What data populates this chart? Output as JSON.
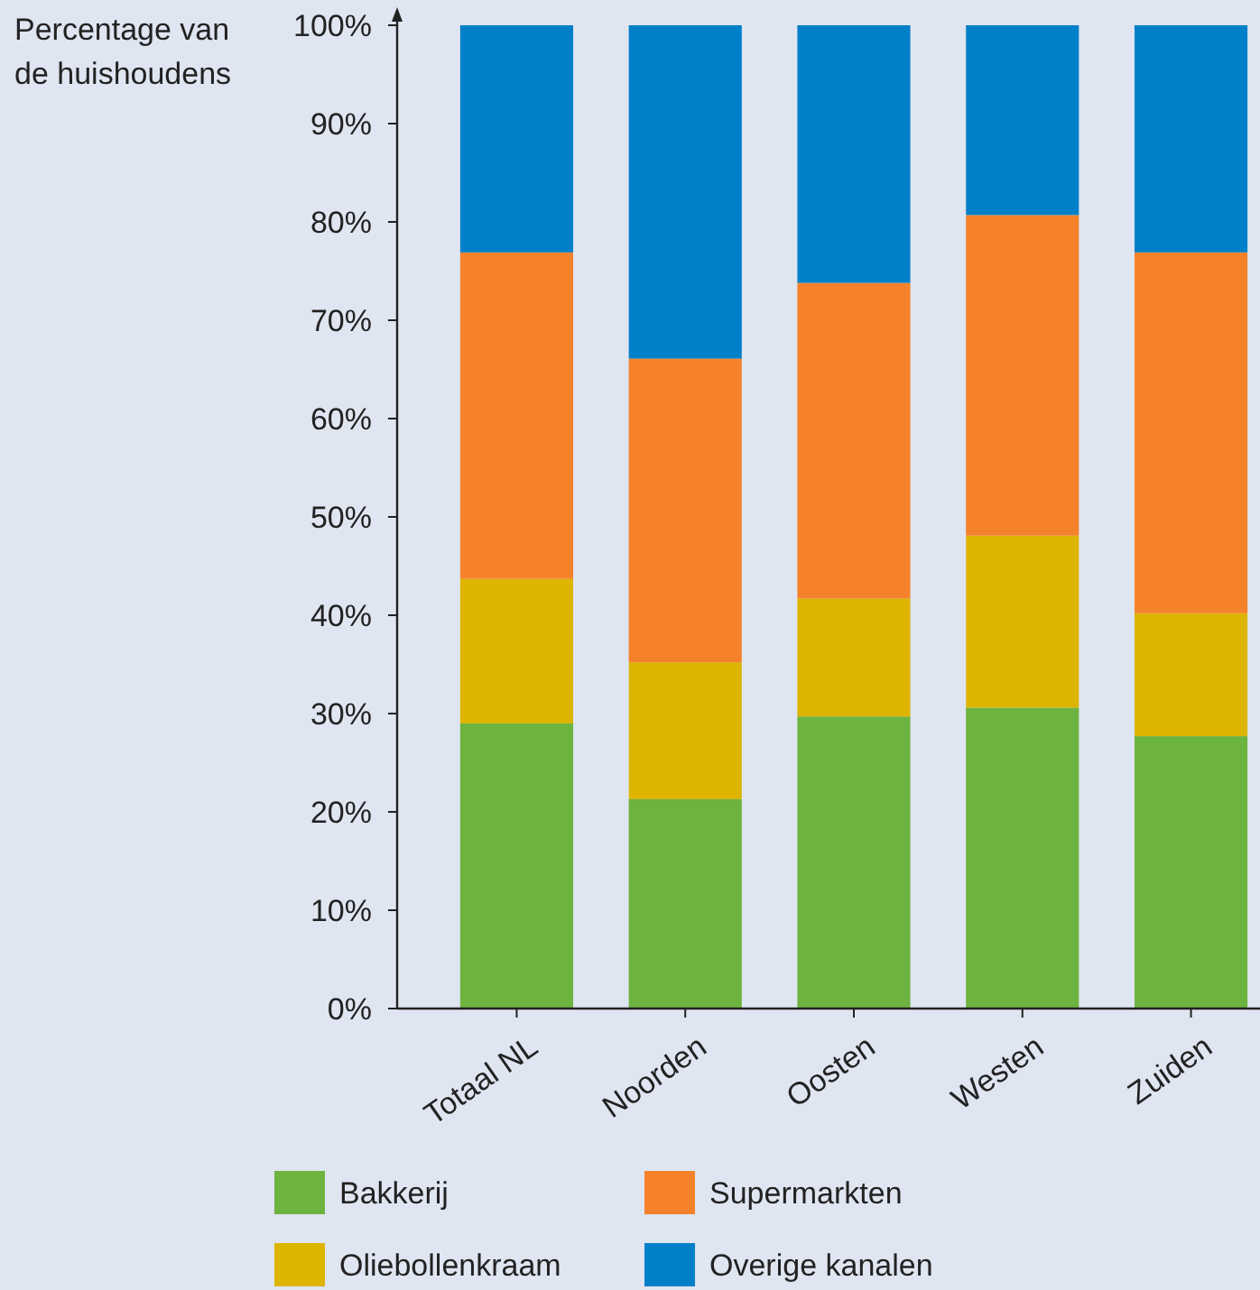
{
  "chart_data": {
    "type": "bar",
    "stacked": true,
    "ylabel": "Percentage van de huishoudens",
    "categories": [
      "Totaal NL",
      "Noorden",
      "Oosten",
      "Westen",
      "Zuiden"
    ],
    "series": [
      {
        "name": "Bakkerij",
        "color": "#6db33f",
        "values": [
          29,
          21.3,
          29.7,
          30.6,
          27.7
        ]
      },
      {
        "name": "Oliebollenkraam",
        "color": "#ddb400",
        "values": [
          14.7,
          13.9,
          12,
          17.5,
          12.5
        ]
      },
      {
        "name": "Supermarkten",
        "color": "#f5822a",
        "values": [
          33.2,
          30.9,
          32.1,
          32.6,
          36.7
        ]
      },
      {
        "name": "Overige kanalen",
        "color": "#0080c8",
        "values": [
          23.1,
          33.9,
          26.2,
          19.3,
          23.1
        ]
      }
    ],
    "ylim": [
      0,
      100
    ],
    "yticks": [
      {
        "value": 0,
        "label": "0%"
      },
      {
        "value": 10,
        "label": "10%"
      },
      {
        "value": 20,
        "label": "20%"
      },
      {
        "value": 30,
        "label": "30%"
      },
      {
        "value": 40,
        "label": "40%"
      },
      {
        "value": 50,
        "label": "50%"
      },
      {
        "value": 60,
        "label": "60%"
      },
      {
        "value": 70,
        "label": "70%"
      },
      {
        "value": 80,
        "label": "80%"
      },
      {
        "value": 90,
        "label": "90%"
      },
      {
        "value": 100,
        "label": "100%"
      }
    ],
    "grid": false,
    "legend": "bottom"
  }
}
